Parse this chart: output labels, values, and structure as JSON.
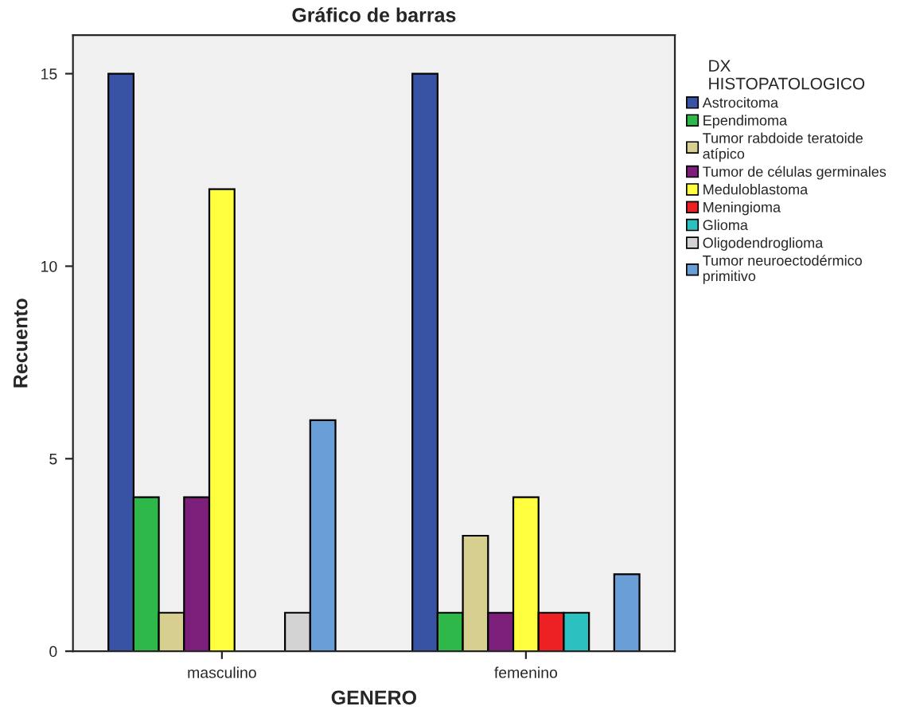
{
  "chart_data": {
    "type": "bar",
    "title": "Gráfico de barras",
    "xlabel": "GENERO",
    "ylabel": "Recuento",
    "legend_title": "DX\nHISTOPATOLOGICO",
    "categories": [
      "masculino",
      "femenino"
    ],
    "series": [
      {
        "name": "Astrocitoma",
        "color": "#3953a4",
        "values": [
          15,
          15
        ]
      },
      {
        "name": "Ependimoma",
        "color": "#2eb84a",
        "values": [
          4,
          1
        ]
      },
      {
        "name": "Tumor rabdoide teratoide\natípico",
        "color": "#d6cf8f",
        "values": [
          1,
          3
        ]
      },
      {
        "name": "Tumor de células germinales",
        "color": "#7b1f7a",
        "values": [
          4,
          1
        ]
      },
      {
        "name": "Meduloblastoma",
        "color": "#ffff40",
        "values": [
          12,
          4
        ]
      },
      {
        "name": "Meningioma",
        "color": "#ed2024",
        "values": [
          null,
          1
        ]
      },
      {
        "name": "Glioma",
        "color": "#2dc0c0",
        "values": [
          null,
          1
        ]
      },
      {
        "name": "Oligodendroglioma",
        "color": "#d3d3d3",
        "values": [
          1,
          null
        ]
      },
      {
        "name": "Tumor neuroectodérmico\nprimitivo",
        "color": "#6a9ed6",
        "values": [
          6,
          2
        ]
      }
    ],
    "ylim": [
      0,
      16
    ],
    "yticks": [
      0,
      5,
      10,
      15
    ],
    "grid": false,
    "legend": "right"
  }
}
